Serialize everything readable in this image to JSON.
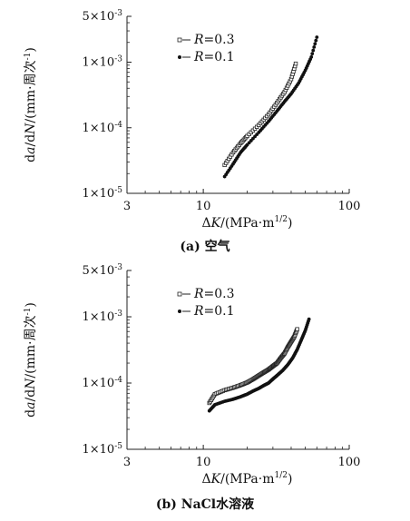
{
  "chart_data": [
    {
      "type": "scatter",
      "caption": "(a) 空气",
      "xlabel": "ΔK/(MPa·m^1/2)",
      "ylabel": "da/dN/(mm·周次⁻¹)",
      "xscale": "log",
      "yscale": "log",
      "xlim": [
        3,
        100
      ],
      "ylim": [
        1e-05,
        0.005
      ],
      "xticks": [
        {
          "value": 3,
          "label": "3"
        },
        {
          "value": 10,
          "label": "10"
        },
        {
          "value": 100,
          "label": "100"
        }
      ],
      "yticks": [
        {
          "value": 1e-05,
          "label": "1×10⁻⁵"
        },
        {
          "value": 0.0001,
          "label": "1×10⁻⁴"
        },
        {
          "value": 0.001,
          "label": "1×10⁻³"
        },
        {
          "value": 0.005,
          "label": "5×10⁻³"
        }
      ],
      "legend": "top-left",
      "series": [
        {
          "name": "R=0.3",
          "marker": "open-square",
          "x": [
            14,
            16,
            18,
            20,
            24,
            28,
            32,
            36,
            40,
            43
          ],
          "y": [
            2.7e-05,
            4.2e-05,
            5.8e-05,
            7.5e-05,
            0.00011,
            0.00016,
            0.00024,
            0.00035,
            0.00055,
            0.00095
          ]
        },
        {
          "name": "R=0.1",
          "marker": "filled-circle",
          "x": [
            14,
            16,
            18,
            20,
            24,
            28,
            32,
            36,
            40,
            45,
            50,
            55,
            60
          ],
          "y": [
            1.8e-05,
            2.8e-05,
            4.2e-05,
            5.5e-05,
            8.5e-05,
            0.000125,
            0.00018,
            0.00025,
            0.00033,
            0.00048,
            0.00075,
            0.0012,
            0.0024
          ]
        }
      ]
    },
    {
      "type": "scatter",
      "caption": "(b) NaCl水溶液",
      "xlabel": "ΔK/(MPa·m^1/2)",
      "ylabel": "da/dN/(mm·周次⁻¹)",
      "xscale": "log",
      "yscale": "log",
      "xlim": [
        3,
        100
      ],
      "ylim": [
        1e-05,
        0.005
      ],
      "xticks": [
        {
          "value": 3,
          "label": "3"
        },
        {
          "value": 10,
          "label": "10"
        },
        {
          "value": 100,
          "label": "100"
        }
      ],
      "yticks": [
        {
          "value": 1e-05,
          "label": "1×10⁻⁵"
        },
        {
          "value": 0.0001,
          "label": "1×10⁻⁴"
        },
        {
          "value": 0.001,
          "label": "1×10⁻³"
        },
        {
          "value": 0.005,
          "label": "5×10⁻³"
        }
      ],
      "legend": "top-left",
      "series": [
        {
          "name": "R=0.3",
          "marker": "open-square",
          "x": [
            11,
            12,
            14,
            16,
            18,
            20,
            22,
            24,
            26,
            28,
            30,
            32,
            34,
            36,
            38,
            40,
            42,
            44
          ],
          "y": [
            5e-05,
            6.8e-05,
            7.8e-05,
            8.5e-05,
            9.3e-05,
            0.000102,
            0.000115,
            0.00013,
            0.000145,
            0.00016,
            0.00018,
            0.0002,
            0.00024,
            0.00028,
            0.00035,
            0.00042,
            0.0005,
            0.00065
          ]
        },
        {
          "name": "R=0.1",
          "marker": "filled-circle",
          "x": [
            11,
            12,
            14,
            16,
            18,
            20,
            22,
            24,
            26,
            28,
            30,
            32,
            35,
            38,
            41,
            44,
            47,
            50,
            53
          ],
          "y": [
            3.8e-05,
            4.7e-05,
            5.3e-05,
            5.7e-05,
            6.2e-05,
            6.8e-05,
            7.6e-05,
            8.3e-05,
            9.2e-05,
            0.0001,
            0.000115,
            0.00013,
            0.000155,
            0.00019,
            0.00024,
            0.00032,
            0.00045,
            0.00062,
            0.00092
          ]
        }
      ]
    }
  ]
}
